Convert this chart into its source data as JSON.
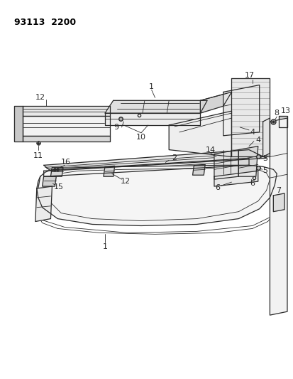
{
  "title": "93113  2200",
  "bg": "#ffffff",
  "lc": "#2a2a2a",
  "fig_w": 4.14,
  "fig_h": 5.33,
  "dpi": 100
}
